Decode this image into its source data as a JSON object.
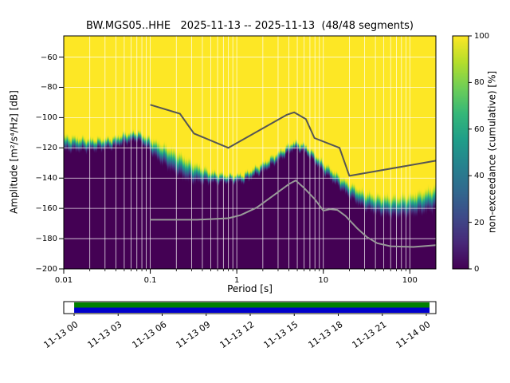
{
  "chart_data": {
    "type": "heatmap",
    "title": "BW.MGS05..HHE   2025-11-13 -- 2025-11-13  (48/48 segments)",
    "xlabel": "Period [s]",
    "ylabel": "Amplitude [m²/s⁴/Hz] [dB]",
    "colorbar_label": "non-exceedance (cumulative) [%]",
    "x_scale": "log",
    "xlim": [
      0.01,
      200
    ],
    "ylim": [
      -200,
      -46
    ],
    "x_ticks": [
      0.01,
      0.1,
      1,
      10,
      100
    ],
    "x_tick_labels": [
      "0.01",
      "0.1",
      "1",
      "10",
      "100"
    ],
    "y_ticks": [
      -60,
      -80,
      -100,
      -120,
      -140,
      -160,
      -180,
      -200
    ],
    "y_tick_labels": [
      "−60",
      "−80",
      "−100",
      "−120",
      "−140",
      "−160",
      "−180",
      "−200"
    ],
    "grid_on": true,
    "grid_color": "#ffffff",
    "colorbar": {
      "min": 0,
      "max": 100,
      "ticks": [
        0,
        20,
        40,
        60,
        80,
        100
      ],
      "tick_labels": [
        "0",
        "20",
        "40",
        "60",
        "80",
        "100"
      ],
      "colormap": "viridis",
      "position": "right"
    },
    "distribution": {
      "description": "PPSD non-exceedance transition per period: median dB (50%) and transition width dB",
      "periods": [
        0.01,
        0.02,
        0.035,
        0.05,
        0.07,
        0.09,
        0.12,
        0.2,
        0.3,
        0.5,
        0.8,
        1.2,
        2,
        3,
        4.5,
        6,
        8,
        10,
        15,
        20,
        30,
        45,
        70,
        100,
        140,
        200
      ],
      "median_db": [
        -117,
        -118,
        -117,
        -114,
        -112,
        -116,
        -122,
        -130,
        -136,
        -139.5,
        -140.5,
        -140,
        -133,
        -126,
        -118.5,
        -120,
        -127,
        -133,
        -142,
        -148,
        -155,
        -158,
        -159,
        -158,
        -156,
        -153
      ],
      "width_db": [
        12,
        9,
        8,
        8,
        7,
        9,
        14,
        18,
        16,
        9,
        6,
        6,
        7,
        7,
        6,
        6,
        7,
        8,
        9,
        11,
        13,
        15,
        16,
        16,
        17,
        18
      ]
    },
    "noise_models": {
      "nhnm": {
        "name": "Peterson high noise model",
        "color": "#555555",
        "periods": [
          0.1,
          0.22,
          0.32,
          0.8,
          3.8,
          4.6,
          6.3,
          7.9,
          15.4,
          20,
          200
        ],
        "db": [
          -91.5,
          -97.4,
          -110.5,
          -120,
          -98.1,
          -96.5,
          -101,
          -113.5,
          -120,
          -138.5,
          -128.5
        ]
      },
      "nlnm": {
        "name": "Peterson low noise model",
        "color": "#999999",
        "periods": [
          0.1,
          0.35,
          0.8,
          1.1,
          1.7,
          2.5,
          4,
          4.8,
          6,
          8,
          10,
          12,
          14.5,
          18,
          25,
          32,
          42,
          60,
          110,
          200
        ],
        "db": [
          -167.5,
          -167.5,
          -166.5,
          -164.5,
          -159.5,
          -152.5,
          -144,
          -141.5,
          -146.5,
          -154,
          -161.5,
          -160.5,
          -161,
          -165,
          -173.5,
          -179,
          -183,
          -185,
          -185.5,
          -184.3
        ]
      }
    },
    "timeline": {
      "tick_labels": [
        "11-13 00",
        "11-13 03",
        "11-13 06",
        "11-13 09",
        "11-13 12",
        "11-13 15",
        "11-13 18",
        "11-13 21",
        "11-14 00"
      ],
      "coverage_color": "#008000",
      "availability_color": "#0000cc",
      "coverage_start_frac": 0.026,
      "coverage_end_frac": 0.985
    }
  }
}
